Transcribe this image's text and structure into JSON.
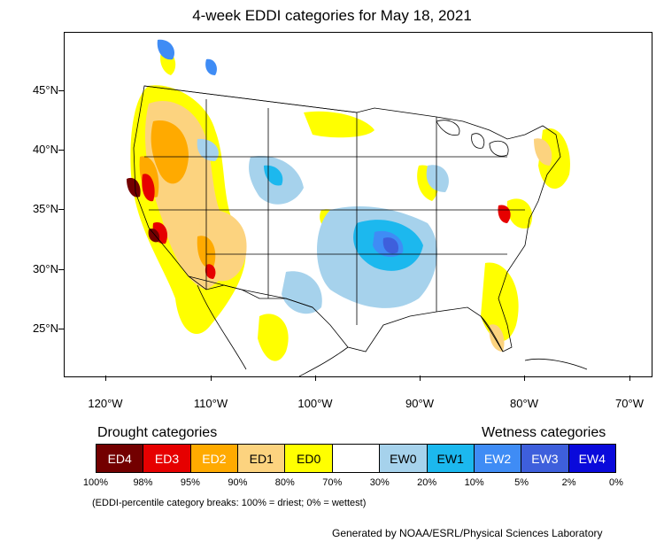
{
  "title": "4-week EDDI categories for May 18, 2021",
  "latitude_labels": [
    "45°N",
    "40°N",
    "35°N",
    "30°N",
    "25°N"
  ],
  "longitude_labels": [
    "120°W",
    "110°W",
    "100°W",
    "90°W",
    "80°W",
    "70°W"
  ],
  "legend": {
    "drought_heading": "Drought categories",
    "wetness_heading": "Wetness categories",
    "categories": [
      {
        "label": "ED4",
        "color": "#730000",
        "text_color": "#ffffff"
      },
      {
        "label": "ED3",
        "color": "#e60000",
        "text_color": "#ffffff"
      },
      {
        "label": "ED2",
        "color": "#ffaa00",
        "text_color": "#ffffff"
      },
      {
        "label": "ED1",
        "color": "#fcd37f",
        "text_color": "#000000"
      },
      {
        "label": "ED0",
        "color": "#ffff00",
        "text_color": "#000000"
      },
      {
        "label": "",
        "color": "#ffffff",
        "text_color": "#000000"
      },
      {
        "label": "EW0",
        "color": "#a6d2ec",
        "text_color": "#000000"
      },
      {
        "label": "EW1",
        "color": "#1cb8ee",
        "text_color": "#000000"
      },
      {
        "label": "EW2",
        "color": "#3f8cf5",
        "text_color": "#ffffff"
      },
      {
        "label": "EW3",
        "color": "#3e5fdc",
        "text_color": "#ffffff"
      },
      {
        "label": "EW4",
        "color": "#0a0adb",
        "text_color": "#ffffff"
      }
    ],
    "percentiles": [
      "100%",
      "98%",
      "95%",
      "90%",
      "80%",
      "70%",
      "30%",
      "20%",
      "10%",
      "5%",
      "2%",
      "0%"
    ]
  },
  "note": "(EDDI-percentile category breaks: 100% = driest; 0% = wettest)",
  "credit": "Generated by NOAA/ESRL/Physical Sciences Laboratory"
}
